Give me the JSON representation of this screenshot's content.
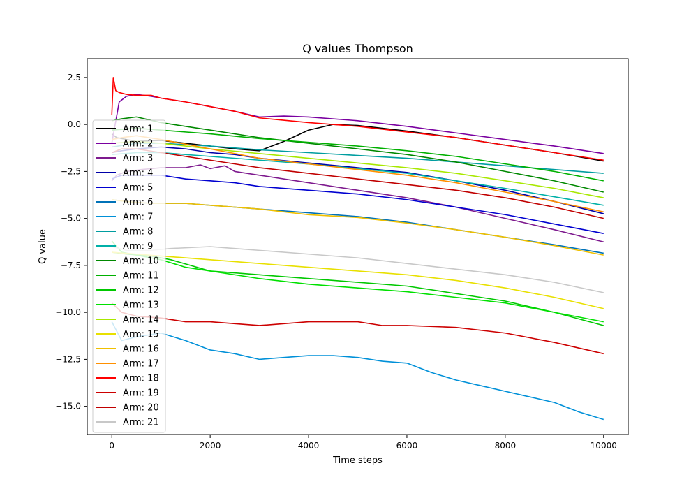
{
  "chart_data": {
    "type": "line",
    "title": "Q values Thompson",
    "xlabel": "Time steps",
    "ylabel": "Q value",
    "xlim": [
      -500,
      10500
    ],
    "ylim": [
      -16.5,
      3.5
    ],
    "xticks": [
      0,
      2000,
      4000,
      6000,
      8000,
      10000
    ],
    "yticks": [
      2.5,
      0.0,
      -2.5,
      -5.0,
      -7.5,
      -10.0,
      -12.5,
      -15.0
    ],
    "xtick_labels": [
      "0",
      "2000",
      "4000",
      "6000",
      "8000",
      "10000"
    ],
    "ytick_labels": [
      "2.5",
      "0.0",
      "−2.5",
      "−5.0",
      "−7.5",
      "−10.0",
      "−12.5",
      "−15.0"
    ],
    "grid": false,
    "legend_position": "left",
    "series": [
      {
        "name": "Arm: 1",
        "color": "#000000",
        "x": [
          0,
          100,
          500,
          1000,
          1500,
          2000,
          2500,
          3000,
          3500,
          4000,
          4500,
          5000,
          6000,
          7000,
          8000,
          9000,
          10000
        ],
        "y": [
          -0.5,
          -0.7,
          -0.9,
          -0.85,
          -1.0,
          -1.15,
          -1.3,
          -1.4,
          -0.9,
          -0.3,
          0.0,
          -0.05,
          -0.35,
          -0.7,
          -1.1,
          -1.5,
          -1.95
        ]
      },
      {
        "name": "Arm: 2",
        "color": "#7a00a0",
        "x": [
          0,
          150,
          300,
          500,
          800,
          1000,
          1500,
          2000,
          2500,
          3000,
          3500,
          4000,
          5000,
          6000,
          7000,
          8000,
          9000,
          10000
        ],
        "y": [
          -1.0,
          1.2,
          1.5,
          1.6,
          1.5,
          1.4,
          1.2,
          0.95,
          0.7,
          0.4,
          0.45,
          0.4,
          0.2,
          -0.1,
          -0.45,
          -0.8,
          -1.15,
          -1.55
        ]
      },
      {
        "name": "Arm: 3",
        "color": "#7e1a8e",
        "x": [
          0,
          100,
          300,
          600,
          1000,
          1500,
          1800,
          2000,
          2300,
          2500,
          3000,
          4000,
          5000,
          6000,
          7000,
          8000,
          9000,
          10000
        ],
        "y": [
          -3.0,
          -2.7,
          -2.5,
          -2.4,
          -2.3,
          -2.3,
          -2.15,
          -2.35,
          -2.2,
          -2.5,
          -2.7,
          -3.1,
          -3.5,
          -3.9,
          -4.4,
          -5.0,
          -5.6,
          -6.25
        ]
      },
      {
        "name": "Arm: 4",
        "color": "#0000a8",
        "x": [
          0,
          200,
          500,
          1000,
          1500,
          2000,
          2500,
          3000,
          4000,
          5000,
          6000,
          7000,
          8000,
          9000,
          10000
        ],
        "y": [
          -1.5,
          -1.4,
          -1.3,
          -1.2,
          -1.3,
          -1.5,
          -1.6,
          -1.8,
          -2.05,
          -2.3,
          -2.55,
          -3.0,
          -3.5,
          -4.1,
          -4.75
        ]
      },
      {
        "name": "Arm: 5",
        "color": "#0000d0",
        "x": [
          0,
          200,
          600,
          1000,
          1500,
          2000,
          2500,
          3000,
          4000,
          5000,
          6000,
          7000,
          8000,
          9000,
          10000
        ],
        "y": [
          -2.9,
          -2.7,
          -2.7,
          -2.7,
          -2.9,
          -3.0,
          -3.1,
          -3.3,
          -3.5,
          -3.7,
          -4.0,
          -4.4,
          -4.8,
          -5.3,
          -5.8
        ]
      },
      {
        "name": "Arm: 6",
        "color": "#0072b8",
        "x": [
          0,
          300,
          800,
          1500,
          2000,
          3000,
          4000,
          5000,
          6000,
          7000,
          8000,
          9000,
          10000
        ],
        "y": [
          -4.0,
          -4.1,
          -4.2,
          -4.2,
          -4.3,
          -4.5,
          -4.7,
          -4.9,
          -5.2,
          -5.6,
          -6.0,
          -6.4,
          -6.85
        ]
      },
      {
        "name": "Arm: 7",
        "color": "#0090d8",
        "x": [
          0,
          200,
          500,
          1000,
          1500,
          2000,
          2500,
          3000,
          3500,
          4000,
          4500,
          5000,
          5500,
          6000,
          6500,
          7000,
          7500,
          8000,
          8500,
          9000,
          9500,
          10000
        ],
        "y": [
          -10.5,
          -11.5,
          -11.3,
          -11.1,
          -11.5,
          -12.0,
          -12.2,
          -12.5,
          -12.4,
          -12.3,
          -12.3,
          -12.4,
          -12.6,
          -12.7,
          -13.2,
          -13.6,
          -13.9,
          -14.2,
          -14.5,
          -14.8,
          -15.3,
          -15.7
        ]
      },
      {
        "name": "Arm: 8",
        "color": "#009da0",
        "x": [
          0,
          500,
          1000,
          2000,
          3000,
          4000,
          5000,
          6000,
          7000,
          8000,
          9000,
          10000
        ],
        "y": [
          -1.2,
          -1.0,
          -1.0,
          -1.15,
          -1.35,
          -1.5,
          -1.65,
          -1.8,
          -2.0,
          -2.2,
          -2.4,
          -2.6
        ]
      },
      {
        "name": "Arm: 9",
        "color": "#00b0a8",
        "x": [
          0,
          500,
          1000,
          2000,
          3000,
          4000,
          5000,
          6000,
          7000,
          8000,
          9000,
          10000
        ],
        "y": [
          -1.6,
          -1.5,
          -1.5,
          -1.7,
          -1.9,
          -2.1,
          -2.35,
          -2.6,
          -3.0,
          -3.4,
          -3.85,
          -4.3
        ]
      },
      {
        "name": "Arm: 10",
        "color": "#008800",
        "x": [
          0,
          200,
          500,
          1000,
          2000,
          3000,
          4000,
          5000,
          6000,
          7000,
          8000,
          9000,
          10000
        ],
        "y": [
          0.2,
          0.3,
          0.4,
          0.1,
          -0.3,
          -0.7,
          -1.0,
          -1.3,
          -1.6,
          -2.0,
          -2.5,
          -3.0,
          -3.6
        ]
      },
      {
        "name": "Arm: 11",
        "color": "#00b000",
        "x": [
          0,
          500,
          1000,
          2000,
          3000,
          4000,
          5000,
          6000,
          7000,
          8000,
          9000,
          10000
        ],
        "y": [
          -0.3,
          -0.2,
          -0.3,
          -0.5,
          -0.75,
          -0.95,
          -1.15,
          -1.4,
          -1.7,
          -2.1,
          -2.5,
          -3.0
        ]
      },
      {
        "name": "Arm: 12",
        "color": "#00c800",
        "x": [
          0,
          300,
          800,
          1200,
          2000,
          3000,
          4000,
          5000,
          6000,
          7000,
          8000,
          9000,
          10000
        ],
        "y": [
          -6.8,
          -6.9,
          -7.0,
          -7.2,
          -7.8,
          -8.0,
          -8.2,
          -8.4,
          -8.6,
          -9.0,
          -9.4,
          -10.0,
          -10.7
        ]
      },
      {
        "name": "Arm: 13",
        "color": "#00e000",
        "x": [
          0,
          200,
          600,
          1000,
          1500,
          2000,
          3000,
          4000,
          5000,
          6000,
          7000,
          8000,
          9000,
          10000
        ],
        "y": [
          -6.2,
          -6.8,
          -7.0,
          -7.2,
          -7.6,
          -7.8,
          -8.2,
          -8.5,
          -8.7,
          -8.9,
          -9.2,
          -9.5,
          -10.0,
          -10.5
        ]
      },
      {
        "name": "Arm: 14",
        "color": "#a8e800",
        "x": [
          0,
          500,
          1000,
          2000,
          3000,
          4000,
          5000,
          6000,
          7000,
          8000,
          9000,
          10000
        ],
        "y": [
          -1.0,
          -0.9,
          -1.0,
          -1.3,
          -1.55,
          -1.8,
          -2.05,
          -2.3,
          -2.6,
          -3.0,
          -3.4,
          -3.9
        ]
      },
      {
        "name": "Arm: 15",
        "color": "#e8e000",
        "x": [
          0,
          500,
          1000,
          2000,
          3000,
          4000,
          5000,
          6000,
          7000,
          8000,
          9000,
          10000
        ],
        "y": [
          -6.8,
          -6.9,
          -7.0,
          -7.2,
          -7.4,
          -7.6,
          -7.8,
          -8.0,
          -8.3,
          -8.7,
          -9.2,
          -9.8
        ]
      },
      {
        "name": "Arm: 16",
        "color": "#f0c000",
        "x": [
          0,
          300,
          800,
          1500,
          2000,
          3000,
          4000,
          5000,
          6000,
          7000,
          8000,
          9000,
          10000
        ],
        "y": [
          -4.0,
          -4.1,
          -4.2,
          -4.2,
          -4.3,
          -4.5,
          -4.8,
          -4.95,
          -5.25,
          -5.6,
          -6.0,
          -6.45,
          -6.95
        ]
      },
      {
        "name": "Arm: 17",
        "color": "#ff9000",
        "x": [
          0,
          200,
          500,
          1000,
          2000,
          3000,
          4000,
          5000,
          6000,
          7000,
          8000,
          9000,
          10000
        ],
        "y": [
          -0.8,
          -0.7,
          -0.6,
          -0.8,
          -1.3,
          -1.8,
          -2.1,
          -2.4,
          -2.7,
          -3.1,
          -3.6,
          -4.1,
          -4.65
        ]
      },
      {
        "name": "Arm: 18",
        "color": "#ff0000",
        "x": [
          0,
          30,
          80,
          150,
          300,
          500,
          800,
          1000,
          1500,
          2000,
          2500,
          3000,
          4000,
          5000,
          6000,
          7000,
          8000,
          9000,
          10000
        ],
        "y": [
          0.5,
          2.5,
          1.8,
          1.7,
          1.6,
          1.55,
          1.55,
          1.4,
          1.2,
          0.95,
          0.7,
          0.35,
          0.1,
          -0.1,
          -0.4,
          -0.7,
          -1.1,
          -1.5,
          -1.9
        ]
      },
      {
        "name": "Arm: 19",
        "color": "#cc0000",
        "x": [
          0,
          200,
          500,
          1000,
          1500,
          2000,
          2500,
          3000,
          4000,
          5000,
          5500,
          6000,
          7000,
          8000,
          9000,
          10000
        ],
        "y": [
          -9.5,
          -10.0,
          -10.2,
          -10.3,
          -10.5,
          -10.5,
          -10.6,
          -10.7,
          -10.5,
          -10.5,
          -10.7,
          -10.7,
          -10.8,
          -11.1,
          -11.6,
          -12.2
        ]
      },
      {
        "name": "Arm: 20",
        "color": "#c00000",
        "x": [
          0,
          200,
          500,
          1000,
          2000,
          3000,
          4000,
          5000,
          6000,
          7000,
          8000,
          9000,
          10000
        ],
        "y": [
          -1.5,
          -1.3,
          -1.3,
          -1.5,
          -1.9,
          -2.3,
          -2.6,
          -2.9,
          -3.2,
          -3.5,
          -3.9,
          -4.4,
          -5.0
        ]
      },
      {
        "name": "Arm: 21",
        "color": "#c8c8c8",
        "x": [
          0,
          300,
          800,
          1200,
          2000,
          2500,
          3000,
          4000,
          5000,
          6000,
          7000,
          8000,
          9000,
          10000
        ],
        "y": [
          -6.5,
          -6.7,
          -6.7,
          -6.6,
          -6.5,
          -6.6,
          -6.7,
          -6.9,
          -7.1,
          -7.4,
          -7.7,
          -8.0,
          -8.4,
          -8.95
        ]
      }
    ]
  }
}
